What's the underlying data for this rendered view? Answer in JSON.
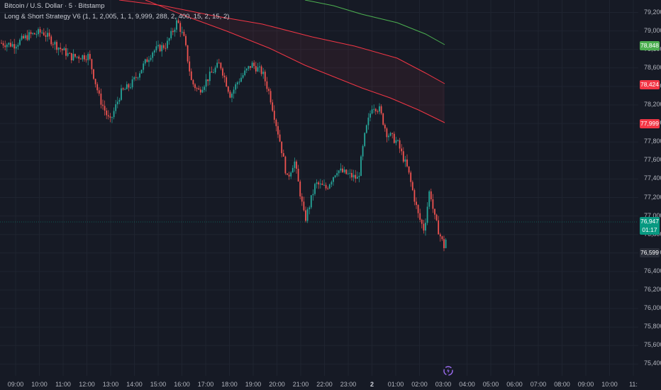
{
  "legend": {
    "symbol": "Bitcoin / U.S. Dollar · 5 · Bitstamp",
    "indicator": "Long & Short Strategy V6 (1, 1, 2,005, 1, 1, 9,999, 288, 2, 400, 15, 2, 15, 2)"
  },
  "price_axis": {
    "ticks": [
      "79,200",
      "79,000",
      "78,800",
      "78,600",
      "78,400",
      "78,200",
      "78,000",
      "77,800",
      "77,600",
      "77,400",
      "77,200",
      "77,000",
      "76,800",
      "76,600",
      "76,400",
      "76,200",
      "76,000",
      "75,800",
      "75,600",
      "75,400"
    ],
    "badges": {
      "green_band": "78,848",
      "red_band_upper": "78,424",
      "red_band_lower": "77,999",
      "last_price": "76,947",
      "countdown": "01:17",
      "low": "76,599"
    },
    "colors": {
      "green_band": "#4caf50",
      "red_band": "#f23645",
      "last_price": "#089981",
      "low": "#2a2e39"
    }
  },
  "time_axis": {
    "labels": [
      "09:00",
      "10:00",
      "11:00",
      "12:00",
      "13:00",
      "14:00",
      "15:00",
      "16:00",
      "17:00",
      "18:00",
      "19:00",
      "20:00",
      "21:00",
      "22:00",
      "23:00",
      "2",
      "01:00",
      "02:00",
      "03:00",
      "04:00",
      "05:00",
      "06:00",
      "07:00",
      "08:00",
      "09:00",
      "10:00",
      "11:"
    ],
    "bold_label": "2"
  },
  "colors": {
    "background": "#161a25",
    "up_candle": "#26a69a",
    "down_candle": "#ef5350",
    "grid": "#1f2430"
  },
  "icons": {
    "replay": "replay-icon"
  }
}
